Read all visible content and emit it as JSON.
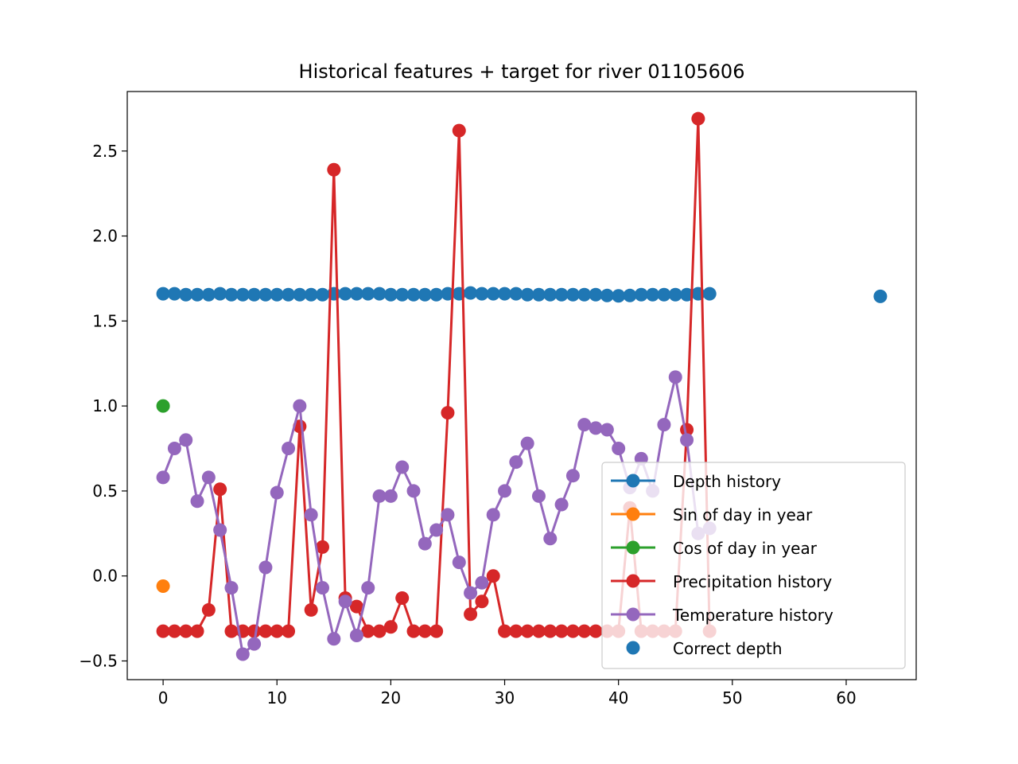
{
  "chart_data": {
    "type": "line",
    "title": "Historical features + target for river 01105606",
    "xlabel": "",
    "ylabel": "",
    "xlim": [
      -3.15,
      66.15
    ],
    "ylim": [
      -0.61,
      2.85
    ],
    "xticks": [
      0,
      10,
      20,
      30,
      40,
      50,
      60
    ],
    "yticks": [
      -0.5,
      0.0,
      0.5,
      1.0,
      1.5,
      2.0,
      2.5
    ],
    "ytick_labels": [
      "−0.5",
      "0.0",
      "0.5",
      "1.0",
      "1.5",
      "2.0",
      "2.5"
    ],
    "grid": false,
    "legend_position": "lower-right",
    "series": [
      {
        "name": "Depth history",
        "color": "#1f77b4",
        "kind": "line",
        "x_start": 0,
        "values": [
          1.66,
          1.66,
          1.655,
          1.655,
          1.655,
          1.66,
          1.655,
          1.655,
          1.655,
          1.655,
          1.655,
          1.655,
          1.655,
          1.655,
          1.655,
          1.66,
          1.66,
          1.66,
          1.66,
          1.66,
          1.655,
          1.655,
          1.655,
          1.655,
          1.655,
          1.66,
          1.66,
          1.665,
          1.66,
          1.66,
          1.66,
          1.66,
          1.655,
          1.655,
          1.655,
          1.655,
          1.655,
          1.655,
          1.655,
          1.65,
          1.648,
          1.65,
          1.655,
          1.655,
          1.655,
          1.655,
          1.655,
          1.66,
          1.66
        ]
      },
      {
        "name": "Sin of day in year",
        "color": "#ff7f0e",
        "kind": "line",
        "x_start": 0,
        "values": [
          -0.06
        ]
      },
      {
        "name": "Cos of day in year",
        "color": "#2ca02c",
        "kind": "line",
        "x_start": 0,
        "values": [
          1.0
        ]
      },
      {
        "name": "Precipitation history",
        "color": "#d62728",
        "kind": "line",
        "x_start": 0,
        "values": [
          -0.325,
          -0.325,
          -0.325,
          -0.325,
          -0.2,
          0.51,
          -0.325,
          -0.325,
          -0.325,
          -0.325,
          -0.325,
          -0.325,
          0.88,
          -0.2,
          0.17,
          2.39,
          -0.13,
          -0.18,
          -0.325,
          -0.325,
          -0.3,
          -0.13,
          -0.325,
          -0.325,
          -0.325,
          0.96,
          2.62,
          -0.225,
          -0.15,
          0.0,
          -0.325,
          -0.325,
          -0.325,
          -0.325,
          -0.325,
          -0.325,
          -0.325,
          -0.325,
          -0.325,
          -0.325,
          -0.325,
          0.4,
          -0.325,
          -0.325,
          -0.325,
          -0.325,
          0.86,
          2.69,
          -0.325
        ]
      },
      {
        "name": "Temperature history",
        "color": "#9467bd",
        "kind": "line",
        "x_start": 0,
        "values": [
          0.58,
          0.75,
          0.8,
          0.44,
          0.58,
          0.27,
          -0.07,
          -0.46,
          -0.4,
          0.05,
          0.49,
          0.75,
          1.0,
          0.36,
          -0.07,
          -0.37,
          -0.15,
          -0.35,
          -0.07,
          0.47,
          0.47,
          0.64,
          0.5,
          0.19,
          0.27,
          0.36,
          0.08,
          -0.1,
          -0.04,
          0.36,
          0.5,
          0.67,
          0.78,
          0.47,
          0.22,
          0.42,
          0.59,
          0.89,
          0.87,
          0.86,
          0.75,
          0.52,
          0.69,
          0.5,
          0.89,
          1.17,
          0.8,
          0.25,
          0.28
        ]
      },
      {
        "name": "Correct depth",
        "color": "#1f77b4",
        "kind": "scatter",
        "points": [
          [
            63,
            1.645
          ]
        ]
      }
    ]
  }
}
